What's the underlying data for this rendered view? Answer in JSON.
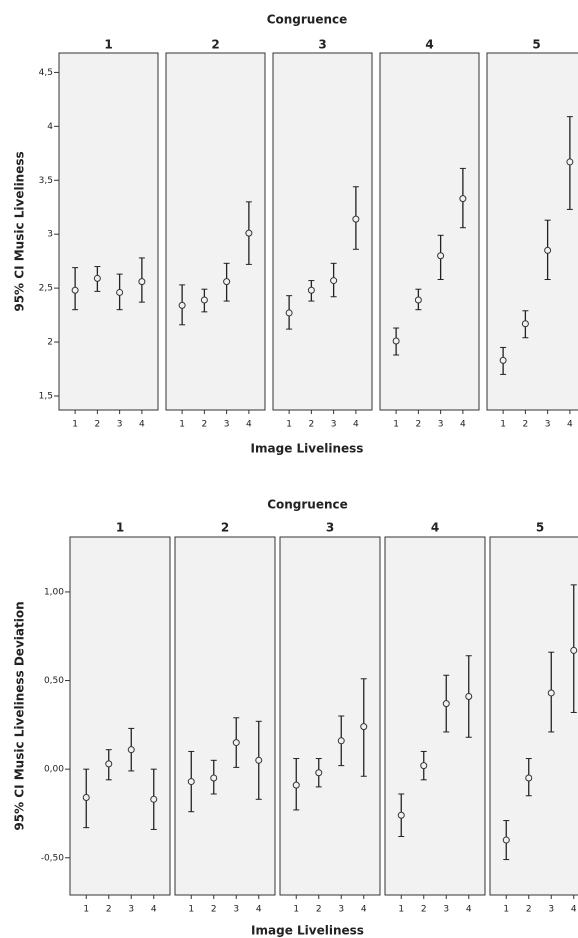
{
  "chart_data": [
    {
      "type": "errorbar",
      "title": "Congruence",
      "xlabel": "Image Liveliness",
      "ylabel": "95% CI Music Liveliness",
      "categories": [
        "1",
        "2",
        "3",
        "4"
      ],
      "ylim": [
        1.37,
        4.68
      ],
      "yticks": [
        {
          "value": 1.5,
          "label": "1,5"
        },
        2,
        {
          "value": 2.5,
          "label": "2,5"
        },
        3,
        {
          "value": 3.5,
          "label": "3,5"
        },
        4,
        {
          "value": 4.5,
          "label": "4,5"
        }
      ],
      "facets": [
        {
          "name": "1",
          "means": [
            2.48,
            2.59,
            2.46,
            2.56
          ],
          "lower": [
            2.3,
            2.47,
            2.3,
            2.37
          ],
          "upper": [
            2.69,
            2.7,
            2.63,
            2.78
          ]
        },
        {
          "name": "2",
          "means": [
            2.34,
            2.39,
            2.56,
            3.01
          ],
          "lower": [
            2.16,
            2.28,
            2.38,
            2.72
          ],
          "upper": [
            2.53,
            2.49,
            2.73,
            3.3
          ]
        },
        {
          "name": "3",
          "means": [
            2.27,
            2.48,
            2.57,
            3.14
          ],
          "lower": [
            2.12,
            2.38,
            2.42,
            2.86
          ],
          "upper": [
            2.43,
            2.57,
            2.73,
            3.44
          ]
        },
        {
          "name": "4",
          "means": [
            2.01,
            2.39,
            2.8,
            3.33
          ],
          "lower": [
            1.88,
            2.3,
            2.58,
            3.06
          ],
          "upper": [
            2.13,
            2.49,
            2.99,
            3.61
          ]
        },
        {
          "name": "5",
          "means": [
            1.83,
            2.17,
            2.85,
            3.67
          ],
          "lower": [
            1.7,
            2.04,
            2.58,
            3.23
          ],
          "upper": [
            1.95,
            2.29,
            3.13,
            4.09
          ]
        }
      ]
    },
    {
      "type": "errorbar",
      "title": "Congruence",
      "xlabel": "Image Liveliness",
      "ylabel": "95% CI Music Liveliness Deviation",
      "categories": [
        "1",
        "2",
        "3",
        "4"
      ],
      "ylim": [
        -0.71,
        1.31
      ],
      "yticks": [
        {
          "value": -0.5,
          "label": "-0,50"
        },
        {
          "value": 0,
          "label": "0,00"
        },
        {
          "value": 0.5,
          "label": "0,50"
        },
        {
          "value": 1,
          "label": "1,00"
        }
      ],
      "facets": [
        {
          "name": "1",
          "means": [
            -0.16,
            0.03,
            0.11,
            -0.17
          ],
          "lower": [
            -0.33,
            -0.06,
            -0.01,
            -0.34
          ],
          "upper": [
            0.0,
            0.11,
            0.23,
            0.0
          ]
        },
        {
          "name": "2",
          "means": [
            -0.07,
            -0.05,
            0.15,
            0.05
          ],
          "lower": [
            -0.24,
            -0.14,
            0.01,
            -0.17
          ],
          "upper": [
            0.1,
            0.05,
            0.29,
            0.27
          ]
        },
        {
          "name": "3",
          "means": [
            -0.09,
            -0.02,
            0.16,
            0.24
          ],
          "lower": [
            -0.23,
            -0.1,
            0.02,
            -0.04
          ],
          "upper": [
            0.06,
            0.06,
            0.3,
            0.51
          ]
        },
        {
          "name": "4",
          "means": [
            -0.26,
            0.02,
            0.37,
            0.41
          ],
          "lower": [
            -0.38,
            -0.06,
            0.21,
            0.18
          ],
          "upper": [
            -0.14,
            0.1,
            0.53,
            0.64
          ]
        },
        {
          "name": "5",
          "means": [
            -0.4,
            -0.05,
            0.43,
            0.67
          ],
          "lower": [
            -0.51,
            -0.15,
            0.21,
            0.32
          ],
          "upper": [
            -0.29,
            0.06,
            0.66,
            1.04
          ]
        }
      ]
    }
  ]
}
